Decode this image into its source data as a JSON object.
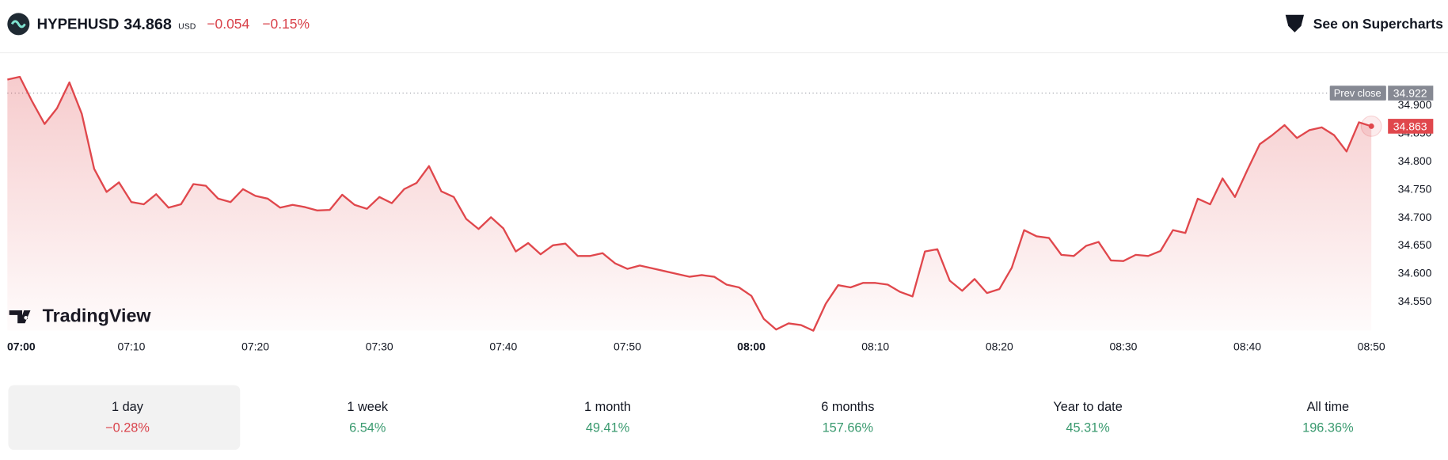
{
  "header": {
    "symbol": "HYPEHUSD",
    "price": "34.868",
    "currency": "USD",
    "change": "−0.054",
    "change_pct": "−0.15%",
    "change_color": "#d9434b",
    "link": "See on Supercharts"
  },
  "chart_data": {
    "type": "line",
    "watermark": "TradingView",
    "categories": [
      "07:00",
      null,
      null,
      null,
      null,
      null,
      null,
      null,
      null,
      null,
      "07:10",
      null,
      null,
      null,
      null,
      null,
      null,
      null,
      null,
      null,
      "07:20",
      null,
      null,
      null,
      null,
      null,
      null,
      null,
      null,
      null,
      "07:30",
      null,
      null,
      null,
      null,
      null,
      null,
      null,
      null,
      null,
      "07:40",
      null,
      null,
      null,
      null,
      null,
      null,
      null,
      null,
      null,
      "07:50",
      null,
      null,
      null,
      null,
      null,
      null,
      null,
      null,
      null,
      "08:00",
      null,
      null,
      null,
      null,
      null,
      null,
      null,
      null,
      null,
      "08:10",
      null,
      null,
      null,
      null,
      null,
      null,
      null,
      null,
      null,
      "08:20",
      null,
      null,
      null,
      null,
      null,
      null,
      null,
      null,
      null,
      "08:30",
      null,
      null,
      null,
      null,
      null,
      null,
      null,
      null,
      null,
      "08:40",
      null,
      null,
      null,
      null,
      null,
      null,
      null,
      null,
      null,
      "08:50"
    ],
    "series": [
      {
        "name": "HYPEHUSD",
        "color": "#e0474c",
        "values": [
          34.946,
          34.951,
          34.907,
          34.867,
          34.895,
          34.941,
          34.885,
          34.787,
          34.746,
          34.763,
          34.728,
          34.724,
          34.742,
          34.718,
          34.724,
          34.76,
          34.757,
          34.734,
          34.728,
          34.751,
          34.739,
          34.734,
          34.718,
          34.723,
          34.719,
          34.713,
          34.714,
          34.741,
          34.723,
          34.716,
          34.737,
          34.726,
          34.751,
          34.762,
          34.792,
          34.747,
          34.737,
          34.698,
          34.68,
          34.701,
          34.681,
          34.64,
          34.655,
          34.635,
          34.651,
          34.654,
          34.632,
          34.632,
          34.637,
          34.619,
          34.609,
          34.615,
          34.61,
          34.605,
          34.6,
          34.595,
          34.598,
          34.595,
          34.581,
          34.576,
          34.561,
          34.52,
          34.501,
          34.512,
          34.509,
          34.499,
          34.547,
          34.58,
          34.576,
          34.584,
          34.584,
          34.581,
          34.568,
          34.56,
          34.64,
          34.644,
          34.588,
          34.57,
          34.591,
          34.566,
          34.573,
          34.611,
          34.678,
          34.667,
          34.664,
          34.634,
          34.632,
          34.65,
          34.657,
          34.624,
          34.623,
          34.634,
          34.632,
          34.641,
          34.678,
          34.673,
          34.734,
          34.724,
          34.77,
          34.737,
          34.785,
          34.831,
          34.847,
          34.865,
          34.842,
          34.856,
          34.861,
          34.847,
          34.818,
          34.87,
          34.863
        ]
      }
    ],
    "ylim": [
      34.499,
      34.989
    ],
    "yticks": [
      {
        "value": 34.55,
        "label": "34.550"
      },
      {
        "value": 34.6,
        "label": "34.600"
      },
      {
        "value": 34.65,
        "label": "34.650"
      },
      {
        "value": 34.7,
        "label": "34.700"
      },
      {
        "value": 34.75,
        "label": "34.750"
      },
      {
        "value": 34.8,
        "label": "34.800"
      },
      {
        "value": 34.85,
        "label": "34.850"
      },
      {
        "value": 34.9,
        "label": "34.900"
      }
    ],
    "prev_close": {
      "label": "Prev close",
      "value": 34.922
    }
  },
  "periods": [
    {
      "label": "1 day",
      "change": "−0.28%",
      "color": "#d9434b",
      "active": true
    },
    {
      "label": "1 week",
      "change": "6.54%",
      "color": "#3a9a6f"
    },
    {
      "label": "1 month",
      "change": "49.41%",
      "color": "#3a9a6f"
    },
    {
      "label": "6 months",
      "change": "157.66%",
      "color": "#3a9a6f"
    },
    {
      "label": "Year to date",
      "change": "45.31%",
      "color": "#3a9a6f"
    },
    {
      "label": "All time",
      "change": "196.36%",
      "color": "#3a9a6f"
    }
  ]
}
